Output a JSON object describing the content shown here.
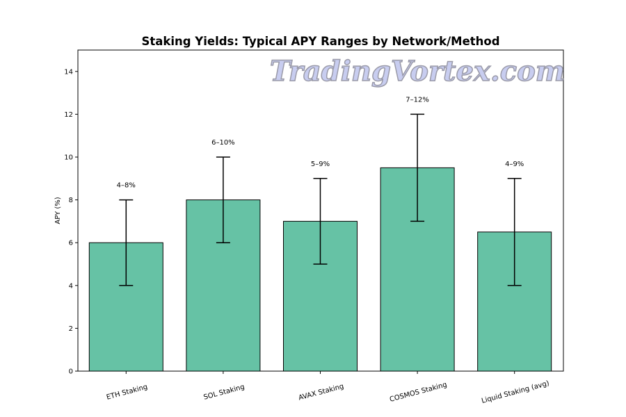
{
  "chart_data": {
    "type": "bar",
    "title": "Staking Yields: Typical APY Ranges by Network/Method",
    "xlabel": "",
    "ylabel": "APY (%)",
    "ylim": [
      0,
      15
    ],
    "yticks": [
      0,
      2,
      4,
      6,
      8,
      10,
      12,
      14
    ],
    "grid": false,
    "categories": [
      "ETH Staking",
      "SOL Staking",
      "AVAX Staking",
      "COSMOS Staking",
      "Liquid Staking (avg)"
    ],
    "values": [
      6,
      8,
      7,
      9.5,
      6.5
    ],
    "error_low": [
      4,
      6,
      5,
      7,
      4
    ],
    "error_high": [
      8,
      10,
      9,
      12,
      9
    ],
    "data_labels": [
      "4–8%",
      "6–10%",
      "5–9%",
      "7–12%",
      "4–9%"
    ],
    "bar_color": "#66c2a5",
    "edge_color": "#000000"
  },
  "watermark": "TradingVortex.com"
}
